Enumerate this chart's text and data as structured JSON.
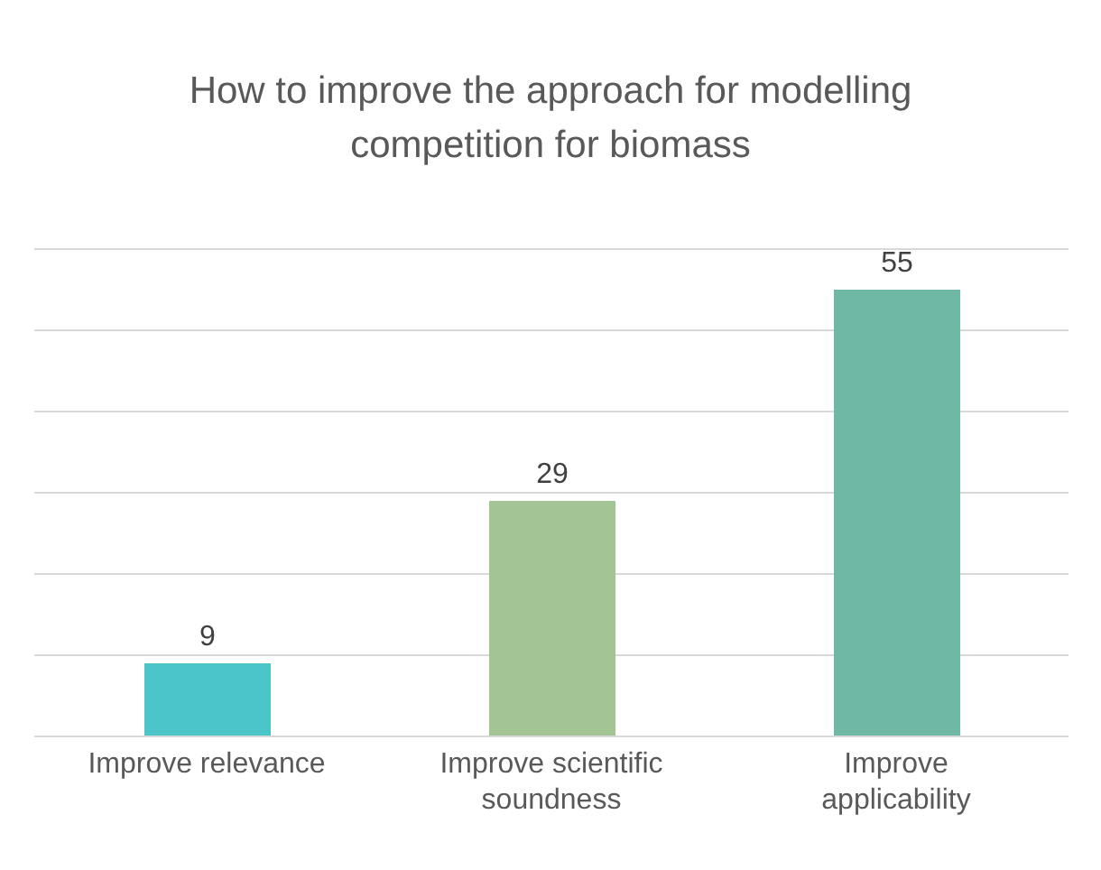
{
  "chart_data": {
    "type": "bar",
    "title": "How to improve the approach for modelling competition for biomass",
    "categories": [
      "Improve relevance",
      "Improve scientific soundness",
      "Improve applicability"
    ],
    "values": [
      9,
      29,
      55
    ],
    "colors": [
      "#4cc5c9",
      "#a3c596",
      "#6fb8a5"
    ],
    "ylim": [
      0,
      60
    ],
    "yticks": [
      {
        "value": 0,
        "label": null
      },
      {
        "value": 10,
        "label": null
      },
      {
        "value": 20,
        "label": null
      },
      {
        "value": 30,
        "label": null
      },
      {
        "value": 40,
        "label": null
      },
      {
        "value": 50,
        "label": null
      },
      {
        "value": 60,
        "label": null
      }
    ],
    "grid": "y",
    "tick_labels": "x",
    "data_labels": true
  }
}
